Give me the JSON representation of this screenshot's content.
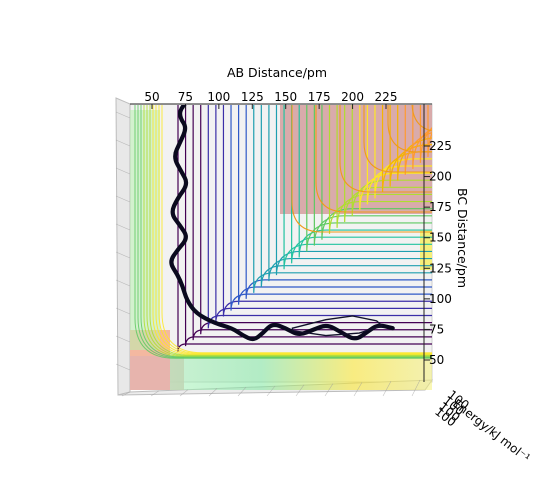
{
  "chart_data": {
    "type": "contour",
    "view": "3d-surface-viewed-from-above",
    "x_axis": {
      "label": "AB Distance/pm",
      "ticks": [
        50,
        75,
        100,
        125,
        150,
        175,
        200,
        225
      ],
      "range": [
        30,
        250
      ]
    },
    "y_axis": {
      "label": "BC Distance/pm",
      "ticks": [
        50,
        75,
        100,
        125,
        150,
        175,
        200,
        225
      ],
      "range": [
        35,
        250
      ]
    },
    "z_axis": {
      "label": "Energy/kJ mol⁻¹",
      "tick_fragment": "100"
    },
    "grid": true,
    "colormap": [
      "#440154",
      "#3b2fa8",
      "#2f59c8",
      "#1f9fb0",
      "#22c3a0",
      "#5ec962",
      "#b0dd2f",
      "#fde725",
      "#f4b400",
      "#ff9a2f"
    ],
    "trajectory": {
      "color": "#0a0a1e",
      "points": [
        [
          75,
          260
        ],
        [
          71,
          255
        ],
        [
          71,
          248
        ],
        [
          76,
          240
        ],
        [
          71,
          228
        ],
        [
          66,
          216
        ],
        [
          72,
          204
        ],
        [
          77,
          194
        ],
        [
          69,
          182
        ],
        [
          64,
          170
        ],
        [
          71,
          160
        ],
        [
          77,
          150
        ],
        [
          69,
          140
        ],
        [
          63,
          130
        ],
        [
          69,
          120
        ],
        [
          73,
          110
        ],
        [
          76,
          99
        ],
        [
          83,
          88
        ],
        [
          97,
          80
        ],
        [
          110,
          76
        ],
        [
          118,
          70
        ],
        [
          126,
          66
        ],
        [
          133,
          72
        ],
        [
          140,
          80
        ],
        [
          150,
          76
        ],
        [
          160,
          70
        ],
        [
          171,
          75
        ],
        [
          181,
          79
        ],
        [
          191,
          73
        ],
        [
          202,
          66
        ],
        [
          211,
          73
        ],
        [
          219,
          79
        ],
        [
          230,
          76
        ]
      ]
    },
    "loop": {
      "points": [
        [
          155,
          76
        ],
        [
          180,
          83
        ],
        [
          200,
          86
        ],
        [
          218,
          82
        ],
        [
          222,
          78
        ],
        [
          205,
          72
        ],
        [
          180,
          70
        ],
        [
          155,
          74
        ]
      ]
    }
  }
}
